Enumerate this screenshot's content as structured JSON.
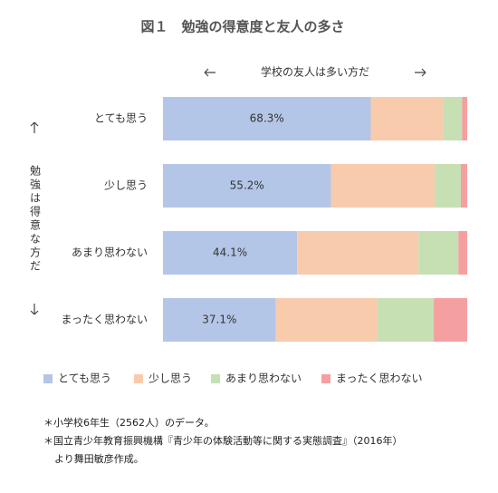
{
  "chart_data": {
    "type": "stacked_barh",
    "title": "図１　勉強の得意度と友人の多さ",
    "xlabel": "学校の友人は多い方だ",
    "ylabel": "勉強は得意な方だ",
    "categories": [
      "とても思う",
      "少し思う",
      "あまり思わない",
      "まったく思わない"
    ],
    "series": [
      {
        "name": "とても思う",
        "color": "#b4c6e7",
        "values": [
          68.3,
          55.2,
          44.1,
          37.1
        ],
        "value_labels": [
          "68.3%",
          "55.2%",
          "44.1%",
          "37.1%"
        ]
      },
      {
        "name": "少し思う",
        "color": "#f8cbad",
        "values": [
          23.7,
          34.1,
          39.9,
          33.4
        ]
      },
      {
        "name": "あまり思わない",
        "color": "#c6e0b4",
        "values": [
          6.3,
          8.6,
          13.1,
          18.5
        ]
      },
      {
        "name": "まったく思わない",
        "color": "#f4a0a0",
        "values": [
          1.7,
          2.1,
          2.9,
          11.0
        ]
      }
    ],
    "xlim": [
      0,
      100
    ],
    "notes": [
      "＊小学校6年生（2562人）のデータ。",
      "＊国立青少年教育振興機構『青少年の体験活動等に関する実態調査』（2016年）",
      "より舞田敏彦作成。"
    ]
  }
}
